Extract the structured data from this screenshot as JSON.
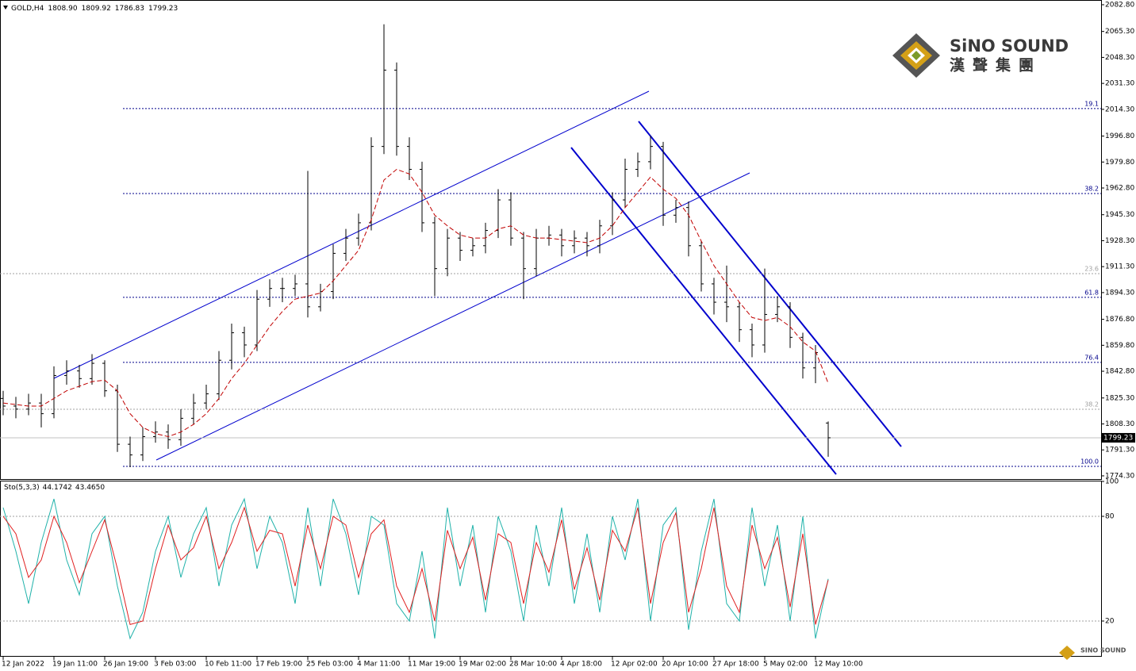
{
  "chart_data": [
    {
      "type": "candlestick",
      "title": "GOLD,H4",
      "ohlc_labels": [
        "1808.90",
        "1809.92",
        "1786.83",
        "1799.23"
      ],
      "categories": [
        "12 Jan 2022",
        null,
        null,
        null,
        "19 Jan 11:00",
        null,
        null,
        null,
        "26 Jan 19:00",
        null,
        null,
        null,
        "3 Feb 03:00",
        null,
        null,
        null,
        "10 Feb 11:00",
        null,
        null,
        null,
        "17 Feb 19:00",
        null,
        null,
        null,
        "25 Feb 03:00",
        null,
        null,
        null,
        "4 Mar 11:00",
        null,
        null,
        null,
        "11 Mar 19:00",
        null,
        null,
        null,
        "19 Mar 02:00",
        null,
        null,
        null,
        "28 Mar 10:00",
        null,
        null,
        null,
        "4 Apr 18:00",
        null,
        null,
        null,
        "12 Apr 02:00",
        null,
        null,
        null,
        "20 Apr 10:00",
        null,
        null,
        null,
        "27 Apr 18:00",
        null,
        null,
        null,
        "5 May 02:00",
        null,
        null,
        null,
        "12 May 10:00",
        null
      ],
      "open": [
        1825,
        1820,
        1818,
        1822,
        1815,
        1840,
        1843,
        1838,
        1848,
        1830,
        1795,
        1788,
        1800,
        1803,
        1798,
        1812,
        1822,
        1828,
        1850,
        1868,
        1860,
        1890,
        1897,
        1897,
        1900,
        1885,
        1895,
        1920,
        1930,
        1940,
        1990,
        2040,
        1990,
        1975,
        1940,
        1910,
        1930,
        1922,
        1925,
        1935,
        1955,
        1930,
        1910,
        1930,
        1932,
        1925,
        1930,
        1925,
        1938,
        1955,
        1975,
        1980,
        1990,
        1945,
        1950,
        1925,
        1900,
        1888,
        1885,
        1870,
        1860,
        1880,
        1885,
        1865,
        1845,
        1808.9
      ],
      "high": [
        1830,
        1826,
        1828,
        1828,
        1846,
        1850,
        1847,
        1854,
        1850,
        1834,
        1800,
        1806,
        1810,
        1808,
        1818,
        1828,
        1834,
        1856,
        1874,
        1872,
        1896,
        1903,
        1904,
        1906,
        1974,
        1900,
        1926,
        1936,
        1946,
        1996,
        2070,
        2045,
        1996,
        1980,
        1944,
        1936,
        1934,
        1930,
        1940,
        1962,
        1960,
        1934,
        1936,
        1938,
        1936,
        1935,
        1934,
        1942,
        1960,
        1982,
        1986,
        1997,
        1993,
        1955,
        1954,
        1928,
        1904,
        1912,
        1888,
        1874,
        1910,
        1892,
        1888,
        1868,
        1860,
        1809.92
      ],
      "low": [
        1814,
        1812,
        1814,
        1806,
        1812,
        1834,
        1832,
        1834,
        1826,
        1790,
        1780,
        1784,
        1796,
        1792,
        1794,
        1808,
        1818,
        1824,
        1844,
        1852,
        1856,
        1885,
        1888,
        1892,
        1878,
        1882,
        1890,
        1915,
        1925,
        1935,
        1985,
        1984,
        1968,
        1934,
        1892,
        1905,
        1915,
        1918,
        1920,
        1930,
        1925,
        1890,
        1905,
        1925,
        1918,
        1920,
        1918,
        1920,
        1932,
        1950,
        1970,
        1975,
        1938,
        1940,
        1918,
        1895,
        1880,
        1875,
        1862,
        1852,
        1855,
        1875,
        1858,
        1838,
        1835,
        1786.83
      ],
      "close": [
        1820,
        1818,
        1822,
        1815,
        1840,
        1843,
        1838,
        1848,
        1830,
        1795,
        1788,
        1800,
        1803,
        1798,
        1812,
        1822,
        1828,
        1850,
        1868,
        1860,
        1890,
        1897,
        1897,
        1900,
        1885,
        1895,
        1920,
        1930,
        1940,
        1990,
        2040,
        1990,
        1975,
        1940,
        1910,
        1930,
        1922,
        1925,
        1935,
        1955,
        1930,
        1910,
        1930,
        1932,
        1925,
        1930,
        1925,
        1938,
        1955,
        1975,
        1980,
        1990,
        1945,
        1950,
        1925,
        1900,
        1888,
        1885,
        1870,
        1860,
        1880,
        1885,
        1865,
        1845,
        1855,
        1799.23
      ],
      "color": "#000000",
      "ma": {
        "color": "#c00000",
        "values": [
          1822,
          1821,
          1820,
          1820,
          1825,
          1830,
          1833,
          1836,
          1837,
          1830,
          1815,
          1806,
          1802,
          1800,
          1803,
          1808,
          1815,
          1825,
          1838,
          1848,
          1860,
          1872,
          1882,
          1890,
          1892,
          1894,
          1902,
          1912,
          1922,
          1942,
          1968,
          1975,
          1972,
          1960,
          1945,
          1938,
          1932,
          1930,
          1930,
          1936,
          1938,
          1932,
          1930,
          1930,
          1929,
          1928,
          1927,
          1930,
          1938,
          1950,
          1960,
          1970,
          1962,
          1956,
          1945,
          1928,
          1912,
          1900,
          1888,
          1878,
          1876,
          1878,
          1872,
          1862,
          1856,
          1835
        ]
      },
      "levels": [
        {
          "label": "19.1",
          "value": 2014.8,
          "color": "#00008b"
        },
        {
          "label": "38.2",
          "value": 1959.2,
          "color": "#00008b"
        },
        {
          "label": "23.6",
          "value": 1906.7,
          "color": "#a0a0a0"
        },
        {
          "label": "61.8",
          "value": 1891.2,
          "color": "#00008b"
        },
        {
          "label": "76.4",
          "value": 1848.6,
          "color": "#00008b"
        },
        {
          "label": "38.2",
          "value": 1817.9,
          "color": "#a0a0a0"
        },
        {
          "label": "100.0",
          "value": 1780.5,
          "color": "#00008b"
        }
      ],
      "current_price": {
        "value": 1799.23,
        "label": "1799.23"
      },
      "ylim": [
        1772.2,
        2085.9
      ],
      "yticks": [
        {
          "value": 2082.8,
          "label": "2082.80"
        },
        {
          "value": 2065.3,
          "label": "2065.30"
        },
        {
          "value": 2048.3,
          "label": "2048.30"
        },
        {
          "value": 2031.3,
          "label": "2031.30"
        },
        {
          "value": 2014.3,
          "label": "2014.30"
        },
        {
          "value": 1996.8,
          "label": "1996.80"
        },
        {
          "value": 1979.8,
          "label": "1979.80"
        },
        {
          "value": 1962.8,
          "label": "1962.80"
        },
        {
          "value": 1945.3,
          "label": "1945.30"
        },
        {
          "value": 1928.3,
          "label": "1928.30"
        },
        {
          "value": 1911.3,
          "label": "1911.30"
        },
        {
          "value": 1894.3,
          "label": "1894.30"
        },
        {
          "value": 1876.8,
          "label": "1876.80"
        },
        {
          "value": 1859.8,
          "label": "1859.80"
        },
        {
          "value": 1842.8,
          "label": "1842.80"
        },
        {
          "value": 1825.3,
          "label": "1825.30"
        },
        {
          "value": 1808.3,
          "label": "1808.30"
        },
        {
          "value": 1791.3,
          "label": "1791.30"
        },
        {
          "value": 1774.3,
          "label": "1774.30"
        }
      ]
    },
    {
      "type": "line",
      "title": "Sto(5,3,3)",
      "legend_values": [
        "44.1742",
        "43.4650"
      ],
      "series": [
        {
          "color": "#20b2aa",
          "values": [
            85,
            60,
            30,
            65,
            90,
            55,
            35,
            70,
            80,
            40,
            10,
            25,
            60,
            80,
            45,
            70,
            85,
            40,
            75,
            90,
            50,
            80,
            65,
            30,
            85,
            40,
            90,
            70,
            35,
            80,
            75,
            30,
            20,
            60,
            10,
            85,
            40,
            75,
            25,
            80,
            60,
            20,
            75,
            40,
            85,
            30,
            70,
            25,
            80,
            55,
            90,
            20,
            75,
            85,
            15,
            60,
            90,
            30,
            20,
            85,
            40,
            75,
            20,
            80,
            10,
            44.1742
          ]
        },
        {
          "color": "#e02020",
          "values": [
            80,
            70,
            45,
            55,
            80,
            65,
            42,
            60,
            78,
            50,
            18,
            20,
            50,
            75,
            55,
            62,
            80,
            50,
            65,
            85,
            60,
            72,
            70,
            40,
            75,
            50,
            80,
            75,
            45,
            70,
            78,
            40,
            25,
            50,
            20,
            72,
            50,
            68,
            32,
            70,
            65,
            30,
            65,
            48,
            78,
            38,
            62,
            32,
            72,
            60,
            85,
            30,
            65,
            82,
            25,
            50,
            85,
            40,
            25,
            75,
            50,
            68,
            28,
            70,
            18,
            43.465
          ]
        }
      ],
      "ylim": [
        0,
        100
      ],
      "yticks": [
        100,
        80,
        20
      ]
    }
  ],
  "logo": {
    "name": "SiNO SOUND",
    "chinese": "漢聲集團",
    "watermark": "SINO SOUND"
  }
}
